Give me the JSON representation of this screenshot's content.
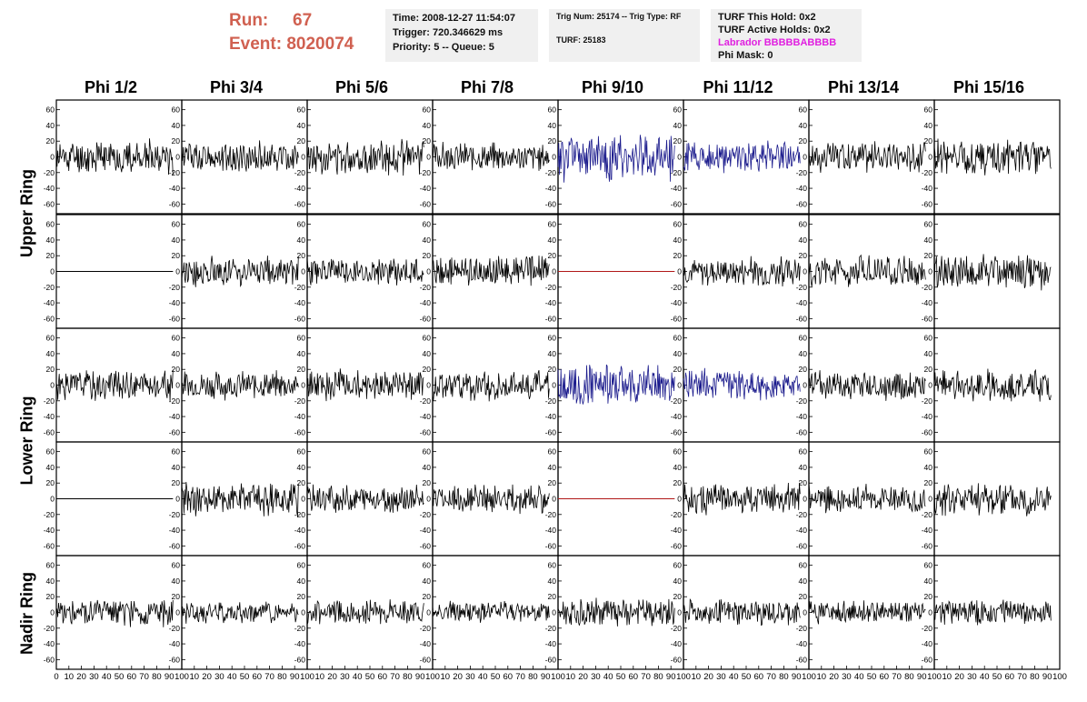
{
  "header": {
    "run_label": "Run:",
    "run_value": "67",
    "event_label": "Event:",
    "event_value": "8020074",
    "time": "Time: 2008-12-27 11:54:07",
    "trigger": "Trigger: 720.346629 ms",
    "priority_queue": "Priority: 5 -- Queue: 5",
    "trig_num_type": "Trig Num: 25174 -- Trig Type: RF",
    "turf": "TURF: 25183",
    "turf_this_hold": "TURF This Hold: 0x2",
    "turf_active_holds": "TURF Active Holds: 0x2",
    "labrador": "Labrador BBBBBABBBB",
    "phi_mask": "Phi Mask: 0"
  },
  "colors": {
    "run_text": "#d06050",
    "labrador_text": "#e020e0",
    "trace_default": "#000000",
    "trace_triggered": "#1a1a8c",
    "trace_flat": "#b01818"
  },
  "chart_data": {
    "type": "line",
    "columns": [
      "Phi 1/2",
      "Phi 3/4",
      "Phi 5/6",
      "Phi 7/8",
      "Phi 9/10",
      "Phi 11/12",
      "Phi 13/14",
      "Phi 15/16"
    ],
    "row_labels": [
      "Upper Ring",
      "Lower Ring",
      "Nadir Ring"
    ],
    "xlim": [
      0,
      100
    ],
    "ylim": [
      -70,
      70
    ],
    "yticks": [
      -60,
      -40,
      -20,
      0,
      20,
      40,
      60
    ],
    "xticks": [
      0,
      10,
      20,
      30,
      40,
      50,
      60,
      70,
      80,
      90,
      100
    ],
    "rows": [
      {
        "ring": "Upper Ring",
        "traces": [
          {
            "style": "noise",
            "amp": 24,
            "seed": 11
          },
          {
            "style": "noise",
            "amp": 22,
            "seed": 12
          },
          {
            "style": "noise",
            "amp": 24,
            "seed": 13
          },
          {
            "style": "noise",
            "amp": 20,
            "seed": 14
          },
          {
            "style": "triggered",
            "amp": 34,
            "seed": 15
          },
          {
            "style": "triggered",
            "amp": 22,
            "seed": 16
          },
          {
            "style": "noise",
            "amp": 22,
            "seed": 17
          },
          {
            "style": "noise",
            "amp": 26,
            "seed": 18
          }
        ]
      },
      {
        "ring": "Upper Ring",
        "traces": [
          {
            "style": "flat",
            "amp": 0,
            "seed": 21
          },
          {
            "style": "noise",
            "amp": 22,
            "seed": 22
          },
          {
            "style": "noise",
            "amp": 20,
            "seed": 23
          },
          {
            "style": "noise",
            "amp": 22,
            "seed": 24
          },
          {
            "style": "flat-red",
            "amp": 0,
            "seed": 25
          },
          {
            "style": "noise",
            "amp": 20,
            "seed": 26
          },
          {
            "style": "noise",
            "amp": 22,
            "seed": 27
          },
          {
            "style": "noise",
            "amp": 26,
            "seed": 28
          }
        ]
      },
      {
        "ring": "Lower Ring",
        "traces": [
          {
            "style": "noise",
            "amp": 22,
            "seed": 31
          },
          {
            "style": "noise",
            "amp": 20,
            "seed": 32
          },
          {
            "style": "noise",
            "amp": 22,
            "seed": 33
          },
          {
            "style": "noise",
            "amp": 22,
            "seed": 34
          },
          {
            "style": "triggered",
            "amp": 30,
            "seed": 35
          },
          {
            "style": "triggered",
            "amp": 22,
            "seed": 36
          },
          {
            "style": "noise",
            "amp": 22,
            "seed": 37
          },
          {
            "style": "noise",
            "amp": 22,
            "seed": 38
          }
        ]
      },
      {
        "ring": "Lower Ring",
        "traces": [
          {
            "style": "flat",
            "amp": 0,
            "seed": 41
          },
          {
            "style": "noise",
            "amp": 24,
            "seed": 42
          },
          {
            "style": "noise",
            "amp": 20,
            "seed": 43
          },
          {
            "style": "noise",
            "amp": 20,
            "seed": 44
          },
          {
            "style": "flat-red",
            "amp": 0,
            "seed": 45
          },
          {
            "style": "noise",
            "amp": 22,
            "seed": 46
          },
          {
            "style": "noise",
            "amp": 20,
            "seed": 47
          },
          {
            "style": "noise",
            "amp": 26,
            "seed": 48
          }
        ]
      },
      {
        "ring": "Nadir Ring",
        "traces": [
          {
            "style": "noise",
            "amp": 20,
            "seed": 51
          },
          {
            "style": "noise",
            "amp": 16,
            "seed": 52
          },
          {
            "style": "noise",
            "amp": 18,
            "seed": 53
          },
          {
            "style": "noise",
            "amp": 16,
            "seed": 54
          },
          {
            "style": "noise",
            "amp": 20,
            "seed": 55
          },
          {
            "style": "noise",
            "amp": 18,
            "seed": 56
          },
          {
            "style": "noise",
            "amp": 16,
            "seed": 57
          },
          {
            "style": "noise",
            "amp": 18,
            "seed": 58
          }
        ]
      }
    ]
  }
}
